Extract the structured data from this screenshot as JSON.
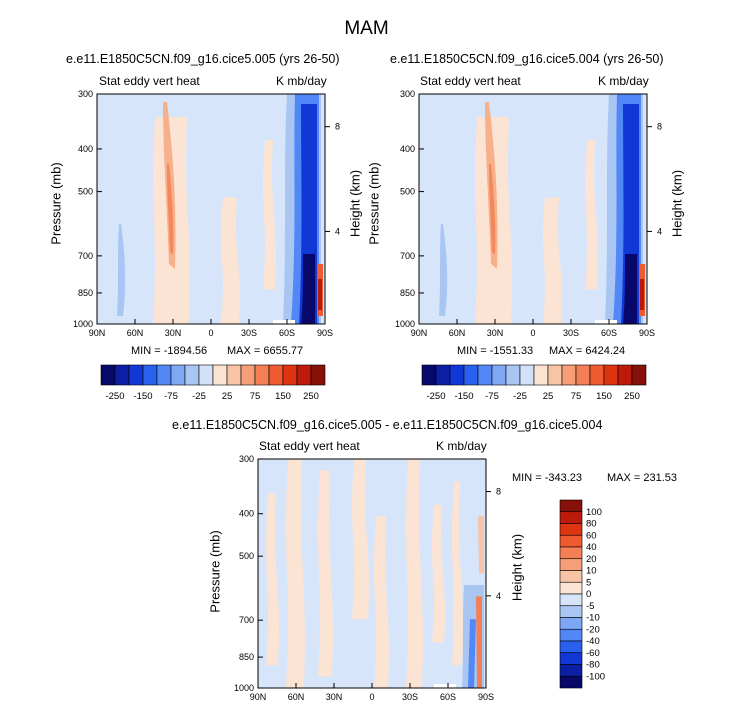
{
  "title": "MAM",
  "colors": {
    "cb_top": [
      "#08086b",
      "#0b1fa5",
      "#1138d6",
      "#2a60ee",
      "#5287f7",
      "#7ea8f5",
      "#a9c6f2",
      "#d2e1f7",
      "#fbe4d4",
      "#f7c4a5",
      "#f59e77",
      "#f47f55",
      "#ef5a31",
      "#de3412",
      "#bd1a0b",
      "#871009"
    ],
    "cb_diff": [
      "#08086b",
      "#0b1fa5",
      "#1138d6",
      "#2a60ee",
      "#5287f7",
      "#7ea8f5",
      "#a9c6f2",
      "#d6e5f9",
      "#fbe4d4",
      "#f7c4a5",
      "#f59e77",
      "#f47f55",
      "#ef5a31",
      "#de3412",
      "#bd1a0b",
      "#871009"
    ],
    "field_neg": "#d6e5f9",
    "field_pos": "#fbe4d4"
  },
  "chart_data": [
    {
      "type": "heatmap",
      "title": "e.e11.E1850C5CN.f09_g16.cice5.005 (yrs 26-50)",
      "left_label": "Stat eddy vert heat",
      "right_label": "K mb/day",
      "ylabel": "Pressure (mb)",
      "ylabel_right": "Height (km)",
      "x_ticks": [
        "90N",
        "60N",
        "30N",
        "0",
        "30S",
        "60S",
        "90S"
      ],
      "y_ticks": [
        "300",
        "400",
        "500",
        "700",
        "850",
        "1000"
      ],
      "y_ticks_right": [
        "8",
        "4"
      ],
      "min": "MIN = -1894.56",
      "max": "MAX = 6655.77"
    },
    {
      "type": "heatmap",
      "title": "e.e11.E1850C5CN.f09_g16.cice5.004 (yrs 26-50)",
      "left_label": "Stat eddy vert heat",
      "right_label": "K mb/day",
      "ylabel": "Pressure (mb)",
      "ylabel_right": "Height (km)",
      "x_ticks": [
        "90N",
        "60N",
        "30N",
        "0",
        "30S",
        "60S",
        "90S"
      ],
      "y_ticks": [
        "300",
        "400",
        "500",
        "700",
        "850",
        "1000"
      ],
      "y_ticks_right": [
        "8",
        "4"
      ],
      "min": "MIN = -1551.33",
      "max": "MAX = 6424.24"
    },
    {
      "type": "heatmap",
      "title": "e.e11.E1850C5CN.f09_g16.cice5.005 - e.e11.E1850C5CN.f09_g16.cice5.004",
      "left_label": "Stat eddy vert heat",
      "right_label": "K mb/day",
      "ylabel": "Pressure (mb)",
      "ylabel_right": "Height (km)",
      "x_ticks": [
        "90N",
        "60N",
        "30N",
        "0",
        "30S",
        "60S",
        "90S"
      ],
      "y_ticks": [
        "300",
        "400",
        "500",
        "700",
        "850",
        "1000"
      ],
      "y_ticks_right": [
        "8",
        "4"
      ],
      "min": "MIN = -343.23",
      "max": "MAX = 231.53"
    }
  ],
  "colorbar_top": {
    "labels": [
      "-250",
      "-150",
      "-75",
      "-25",
      "25",
      "75",
      "150",
      "250"
    ]
  },
  "colorbar_diff": {
    "labels": [
      "100",
      "80",
      "60",
      "40",
      "20",
      "10",
      "5",
      "0",
      "-5",
      "-10",
      "-20",
      "-40",
      "-60",
      "-80",
      "-100"
    ]
  }
}
